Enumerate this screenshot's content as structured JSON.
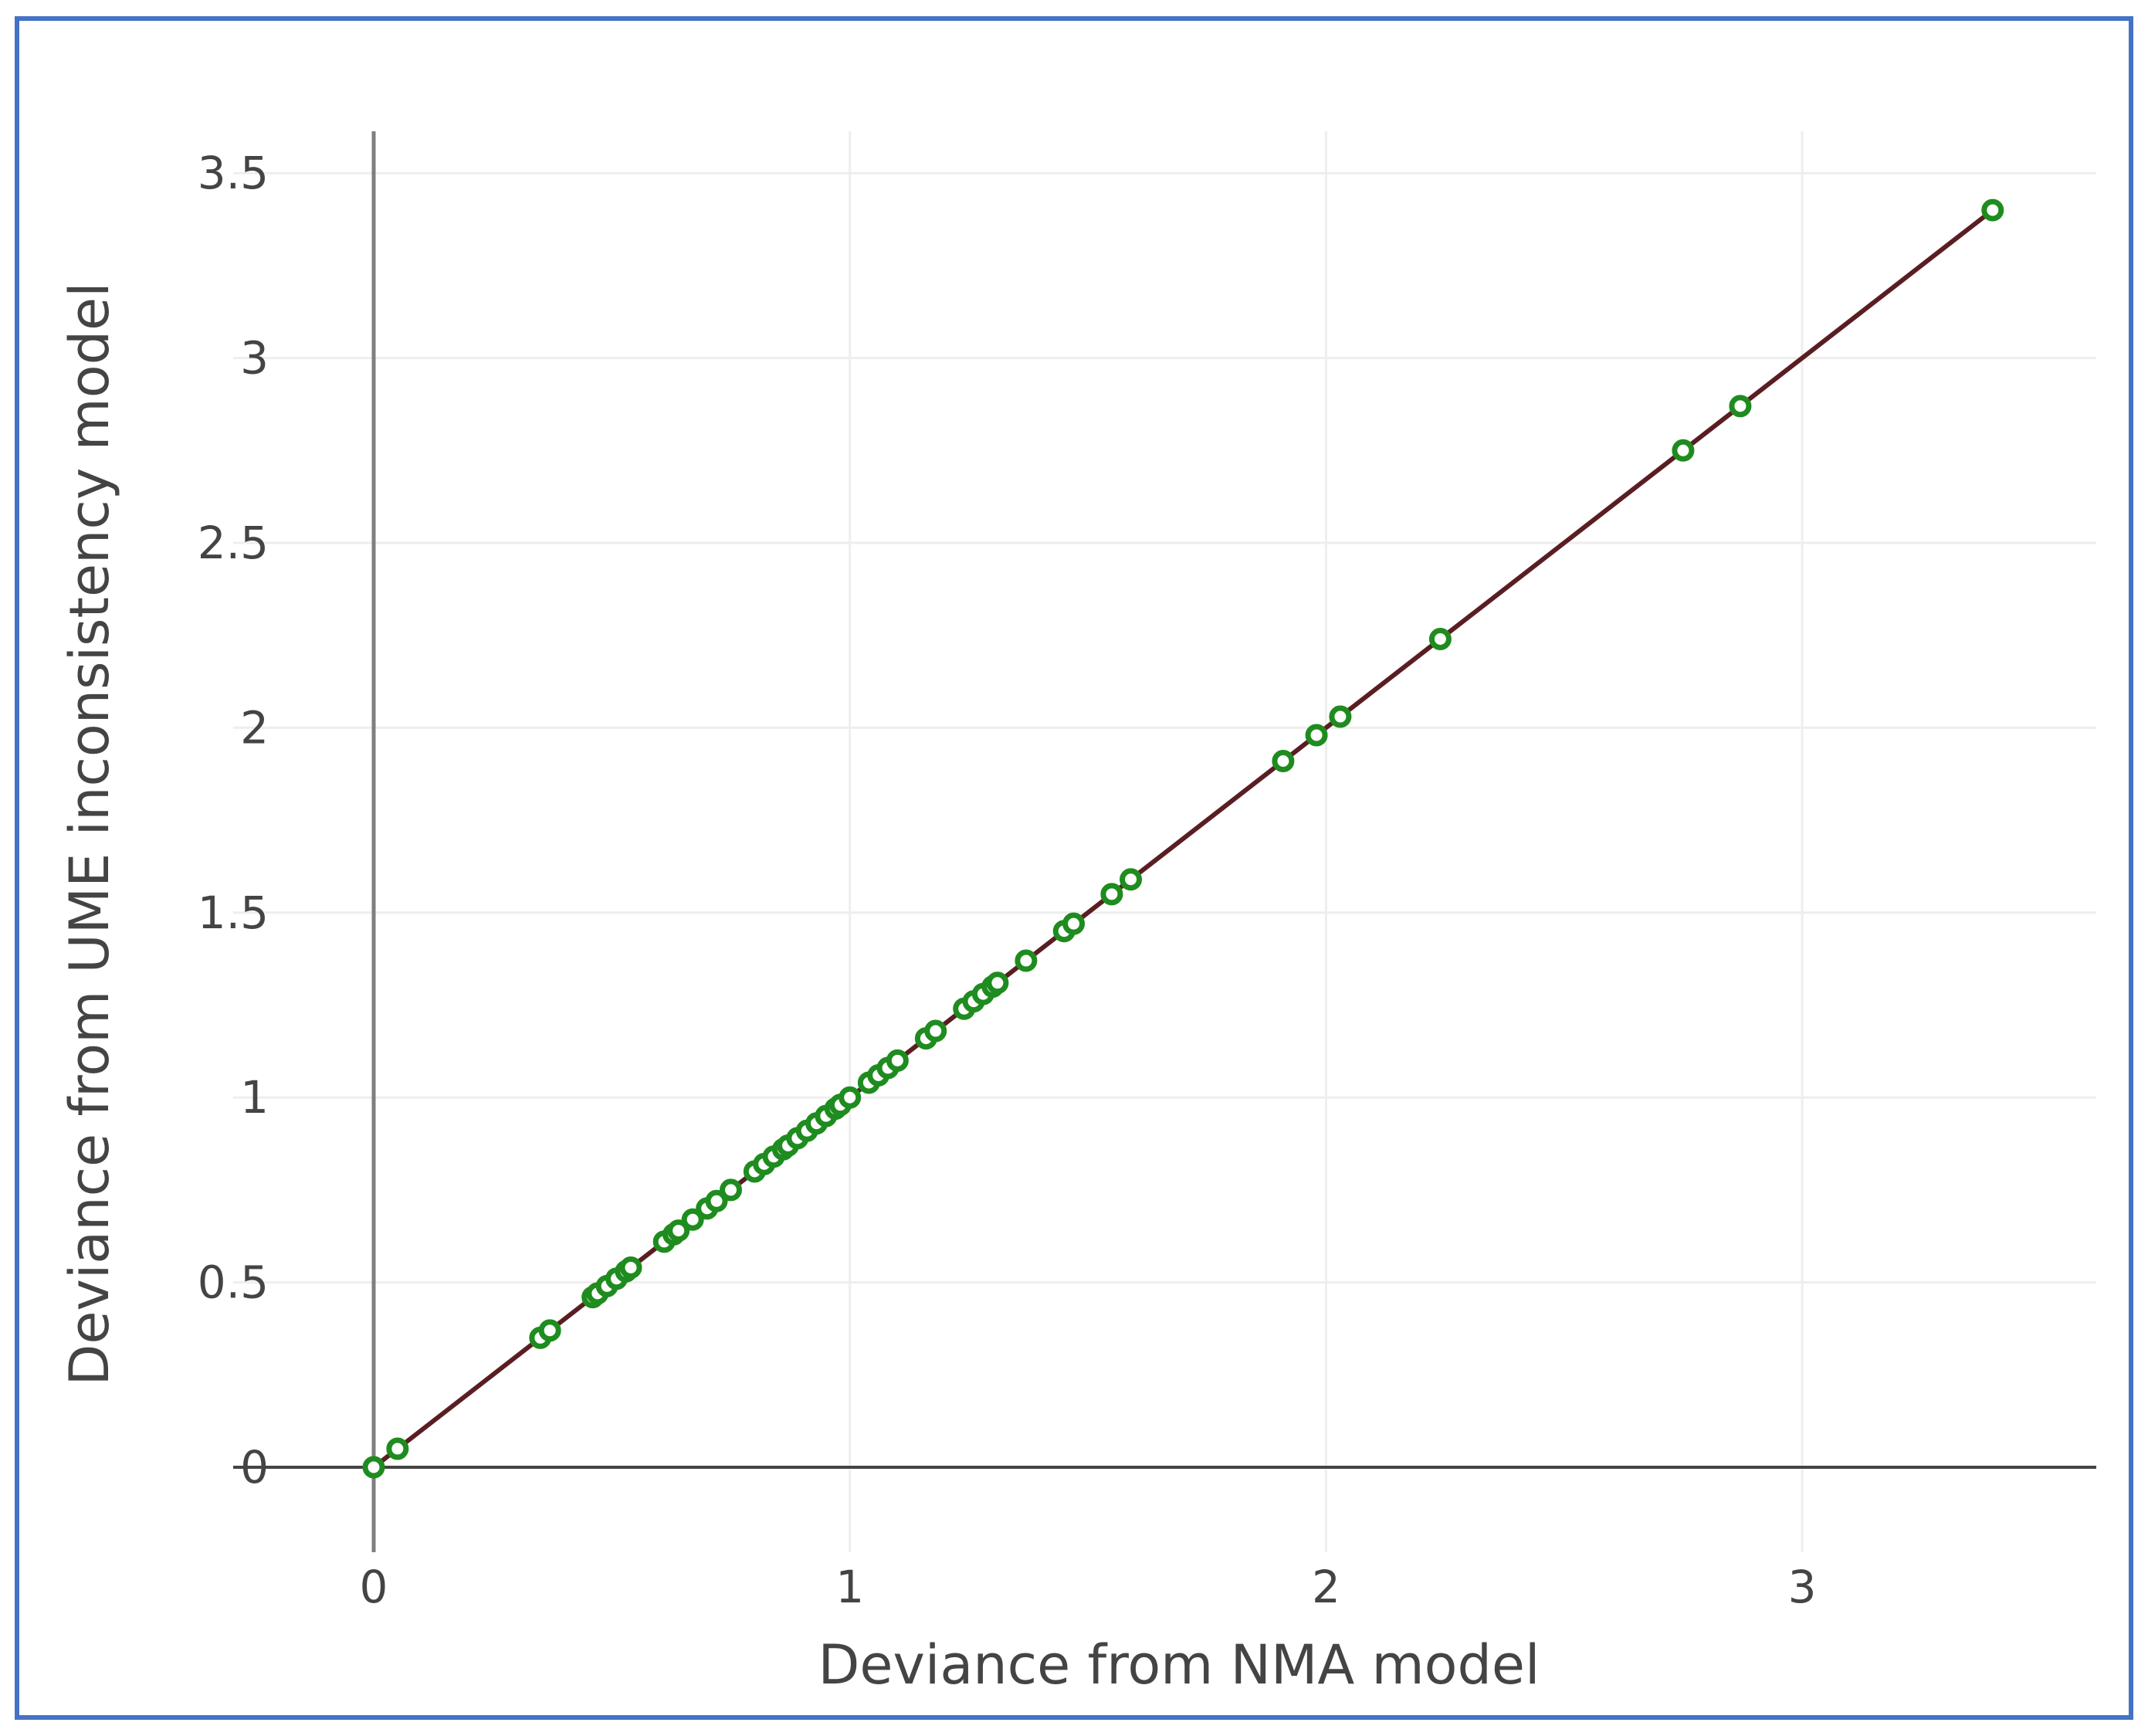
{
  "colors": {
    "frame_border": "#4472c4",
    "grid": "#eeeeee",
    "zero_line": "#444444",
    "y_axis_line": "#7f7f7f",
    "line": "#5a1e22",
    "marker": "#1e8c1e"
  },
  "chart_data": {
    "type": "scatter",
    "title": "",
    "xlabel": "Deviance from NMA model",
    "ylabel": "Deviance from UME inconsistency model",
    "xlim": [
      -0.18,
      3.6
    ],
    "ylim": [
      -0.22,
      3.62
    ],
    "x_ticks": [
      0,
      1,
      2,
      3
    ],
    "x_tick_labels": [
      "0",
      "1",
      "2",
      "3"
    ],
    "y_ticks": [
      0,
      0.5,
      1,
      1.5,
      2,
      2.5,
      3,
      3.5
    ],
    "y_tick_labels": [
      "0",
      "0.5",
      "1",
      "1.5",
      "2",
      "2.5",
      "3",
      "3.5"
    ],
    "grid": true,
    "legend": "none",
    "series": [
      {
        "mode": "line",
        "x": [
          0,
          3.4
        ],
        "y": [
          0,
          3.4
        ]
      },
      {
        "mode": "markers",
        "x": [
          0.0,
          0.05,
          0.35,
          0.37,
          0.46,
          0.47,
          0.49,
          0.51,
          0.53,
          0.54,
          0.61,
          0.63,
          0.64,
          0.67,
          0.7,
          0.72,
          0.75,
          0.8,
          0.82,
          0.84,
          0.86,
          0.87,
          0.89,
          0.91,
          0.93,
          0.95,
          0.97,
          0.98,
          1.0,
          1.04,
          1.06,
          1.08,
          1.1,
          1.16,
          1.18,
          1.24,
          1.26,
          1.28,
          1.3,
          1.31,
          1.37,
          1.45,
          1.47,
          1.55,
          1.59,
          1.91,
          1.98,
          2.03,
          2.24,
          2.75,
          2.87,
          3.4
        ],
        "y": [
          0.0,
          0.05,
          0.35,
          0.37,
          0.46,
          0.47,
          0.49,
          0.51,
          0.53,
          0.54,
          0.61,
          0.63,
          0.64,
          0.67,
          0.7,
          0.72,
          0.75,
          0.8,
          0.82,
          0.84,
          0.86,
          0.87,
          0.89,
          0.91,
          0.93,
          0.95,
          0.97,
          0.98,
          1.0,
          1.04,
          1.06,
          1.08,
          1.1,
          1.16,
          1.18,
          1.24,
          1.26,
          1.28,
          1.3,
          1.31,
          1.37,
          1.45,
          1.47,
          1.55,
          1.59,
          1.91,
          1.98,
          2.03,
          2.24,
          2.75,
          2.87,
          3.4
        ]
      }
    ]
  }
}
